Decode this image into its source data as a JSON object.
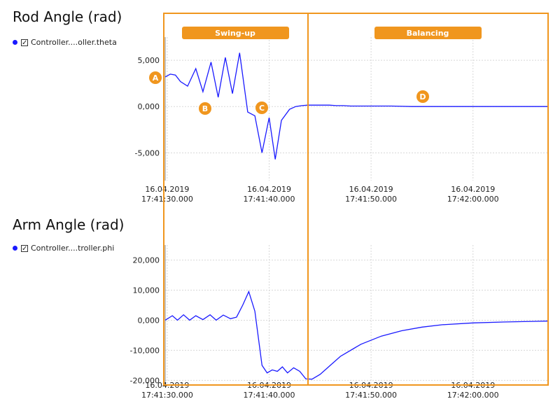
{
  "charts": [
    {
      "title": "Rod Angle (rad)",
      "legend_label": "Controller....oller.theta",
      "series_color": "#1a1aff"
    },
    {
      "title": "Arm Angle (rad)",
      "legend_label": "Controller....troller.phi",
      "series_color": "#1a1aff"
    }
  ],
  "phases": [
    {
      "label": "Swing-up"
    },
    {
      "label": "Balancing"
    }
  ],
  "markers": [
    "A",
    "B",
    "C",
    "D"
  ],
  "accent_color": "#f0961e",
  "x_ticks": [
    {
      "date": "16.04.2019",
      "time": "17:41:30.000"
    },
    {
      "date": "16.04.2019",
      "time": "17:41:40.000"
    },
    {
      "date": "16.04.2019",
      "time": "17:41:50.000"
    },
    {
      "date": "16.04.2019",
      "time": "17:42:00.000"
    }
  ],
  "chart_data": [
    {
      "type": "line",
      "title": "Rod Angle (rad)",
      "xlabel": "",
      "ylabel": "",
      "grid": true,
      "legend_position": "left",
      "x_unit": "seconds after 17:41:30",
      "xlim": [
        -0.2,
        37.3
      ],
      "ylim": [
        -8,
        7.5
      ],
      "y_ticks": [
        5,
        0,
        -5
      ],
      "y_tick_labels": [
        "5,000",
        "0,000",
        "-5,000"
      ],
      "series": [
        {
          "name": "Controller....oller.theta",
          "x": [
            -0.2,
            0.3,
            0.8,
            1.3,
            2.0,
            2.8,
            3.5,
            4.3,
            5.0,
            5.7,
            6.4,
            7.1,
            7.9,
            8.6,
            9.3,
            10.0,
            10.6,
            11.2,
            12.0,
            12.6,
            13.2,
            13.8,
            14.5,
            15.2,
            15.9,
            16.6,
            17.3,
            18.0,
            19.0,
            20.0,
            22.0,
            24.0,
            26.0,
            30.0,
            34.0,
            37.3
          ],
          "y": [
            3.2,
            3.5,
            3.4,
            2.7,
            2.2,
            4.1,
            1.6,
            4.8,
            1.0,
            5.3,
            1.4,
            5.8,
            -0.6,
            -1.0,
            -5.0,
            -1.2,
            -5.7,
            -1.5,
            -0.3,
            0.0,
            0.1,
            0.15,
            0.15,
            0.15,
            0.15,
            0.1,
            0.1,
            0.05,
            0.05,
            0.05,
            0.05,
            0.0,
            0.0,
            0.0,
            0.0,
            0.0
          ]
        }
      ]
    },
    {
      "type": "line",
      "title": "Arm Angle (rad)",
      "xlabel": "",
      "ylabel": "",
      "grid": true,
      "legend_position": "left",
      "x_unit": "seconds after 17:41:30",
      "xlim": [
        -0.2,
        37.3
      ],
      "ylim": [
        -22000,
        25000
      ],
      "y_ticks": [
        20000,
        10000,
        0,
        -10000,
        -20000
      ],
      "y_tick_labels": [
        "20,000",
        "10,000",
        "0,000",
        "-10,000",
        "-20,000"
      ],
      "series": [
        {
          "name": "Controller....troller.phi",
          "x": [
            -0.2,
            0.5,
            1.0,
            1.6,
            2.2,
            2.8,
            3.5,
            4.2,
            4.8,
            5.5,
            6.2,
            6.8,
            7.4,
            8.0,
            8.6,
            9.3,
            9.8,
            10.3,
            10.8,
            11.3,
            11.8,
            12.4,
            13.0,
            13.6,
            14.2,
            15.0,
            16.0,
            17.0,
            19.0,
            21.0,
            23.0,
            25.0,
            27.0,
            30.0,
            33.0,
            35.0,
            37.3
          ],
          "y": [
            0,
            1500,
            0,
            1800,
            0,
            1500,
            200,
            1800,
            0,
            1700,
            500,
            1000,
            5000,
            9500,
            3000,
            -15000,
            -17500,
            -16500,
            -17000,
            -15500,
            -17500,
            -15800,
            -17000,
            -19500,
            -19600,
            -18000,
            -15000,
            -12000,
            -8000,
            -5300,
            -3500,
            -2300,
            -1500,
            -900,
            -600,
            -450,
            -300
          ]
        }
      ]
    }
  ]
}
